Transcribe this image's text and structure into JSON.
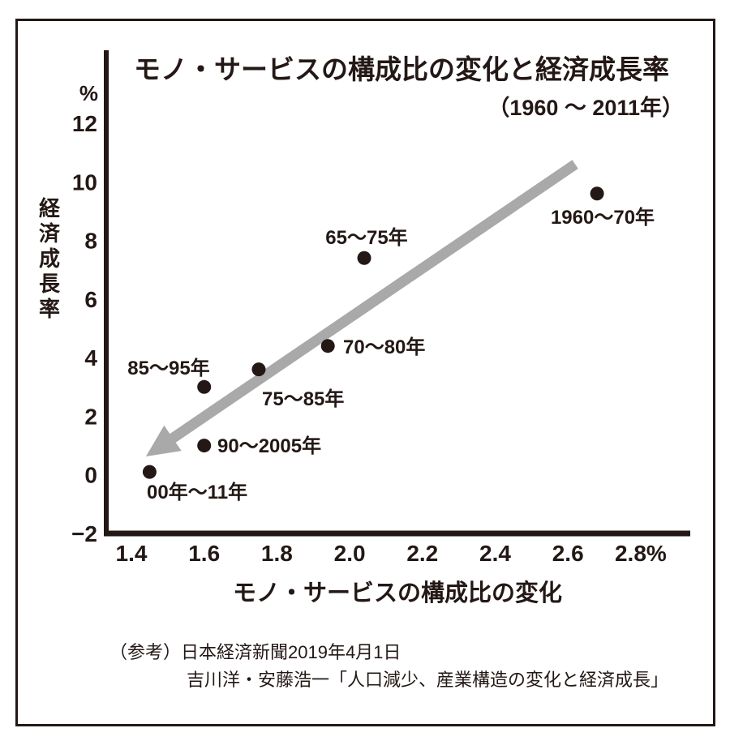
{
  "caption": {
    "line1": "（参考）日本経済新聞2019年4月1日",
    "line2": "吉川洋・安藤浩一「人口減少、産業構造の変化と経済成長」"
  },
  "chart_data": {
    "type": "scatter",
    "title": "モノ・サービスの構成比の変化と経済成長率",
    "subtitle": "（1960 ～ 2011年）",
    "xlabel": "モノ・サービスの構成比の変化",
    "ylabel": "経済成長率",
    "y_unit": "%",
    "xlim": [
      1.4,
      2.8
    ],
    "ylim": [
      -2,
      12
    ],
    "grid": false,
    "x_ticks": [
      {
        "label": "1.4",
        "value": 1.4
      },
      {
        "label": "1.6",
        "value": 1.6
      },
      {
        "label": "1.8",
        "value": 1.8
      },
      {
        "label": "2.0",
        "value": 2.0
      },
      {
        "label": "2.2",
        "value": 2.2
      },
      {
        "label": "2.4",
        "value": 2.4
      },
      {
        "label": "2.6",
        "value": 2.6
      },
      {
        "label": "2.8%",
        "value": 2.8
      }
    ],
    "y_ticks": [
      {
        "label": "12",
        "value": 12
      },
      {
        "label": "10",
        "value": 10
      },
      {
        "label": "8",
        "value": 8
      },
      {
        "label": "6",
        "value": 6
      },
      {
        "label": "4",
        "value": 4
      },
      {
        "label": "2",
        "value": 2
      },
      {
        "label": "0",
        "value": 0
      },
      {
        "label": "−2",
        "value": -2
      }
    ],
    "points": [
      {
        "label": "1960～70年",
        "x": 2.68,
        "y": 9.6
      },
      {
        "label": "65～75年",
        "x": 2.04,
        "y": 7.4
      },
      {
        "label": "70～80年",
        "x": 1.94,
        "y": 4.4
      },
      {
        "label": "75～85年",
        "x": 1.75,
        "y": 3.6
      },
      {
        "label": "85～95年",
        "x": 1.6,
        "y": 3.0
      },
      {
        "label": "90～2005年",
        "x": 1.6,
        "y": 1.0
      },
      {
        "label": "00年～11年",
        "x": 1.45,
        "y": 0.1
      }
    ],
    "trend_arrow": {
      "from": {
        "x": 2.62,
        "y": 10.6
      },
      "to": {
        "x": 1.44,
        "y": 0.63
      }
    },
    "colors": {
      "ink": "#231815",
      "arrow": "#a9a9a9",
      "background": "#ffffff"
    }
  }
}
